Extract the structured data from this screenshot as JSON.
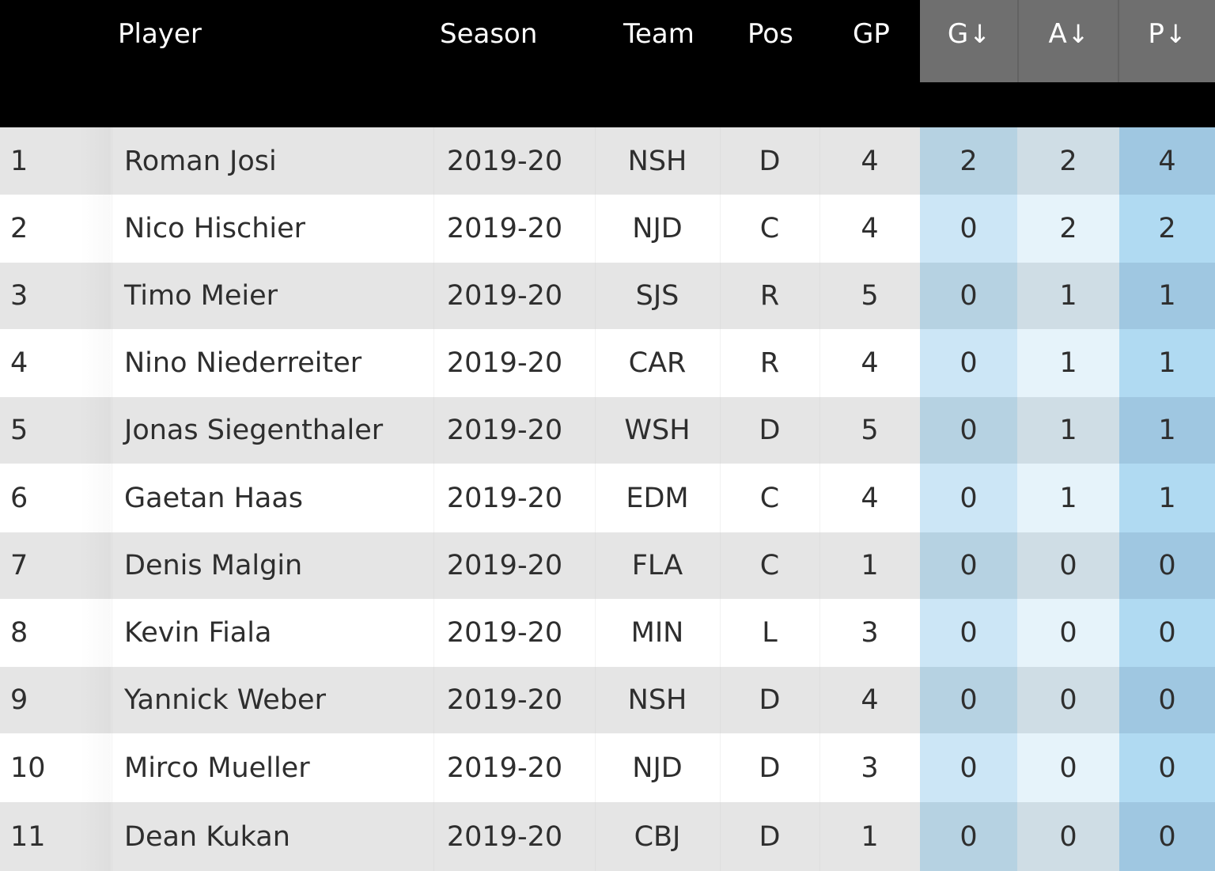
{
  "columns": {
    "player": "Player",
    "season": "Season",
    "team": "Team",
    "pos": "Pos",
    "gp": "GP",
    "g": "G",
    "a": "A",
    "p": "P",
    "sort_arrow": "↓"
  },
  "colors": {
    "header_bg": "#000000",
    "sorted_header_bg": "#6f6f6f",
    "row_odd": "#e5e5e5",
    "row_even": "#ffffff",
    "g_odd": "#b6d2e2",
    "g_even": "#cce6f6",
    "a_odd": "#cfdde5",
    "a_even": "#e6f3fa",
    "p_odd": "#9fc7e1",
    "p_even": "#b0daf2"
  },
  "rows": [
    {
      "rank": "1",
      "player": "Roman Josi",
      "season": "2019-20",
      "team": "NSH",
      "pos": "D",
      "gp": "4",
      "g": "2",
      "a": "2",
      "p": "4"
    },
    {
      "rank": "2",
      "player": "Nico Hischier",
      "season": "2019-20",
      "team": "NJD",
      "pos": "C",
      "gp": "4",
      "g": "0",
      "a": "2",
      "p": "2"
    },
    {
      "rank": "3",
      "player": "Timo Meier",
      "season": "2019-20",
      "team": "SJS",
      "pos": "R",
      "gp": "5",
      "g": "0",
      "a": "1",
      "p": "1"
    },
    {
      "rank": "4",
      "player": "Nino Niederreiter",
      "season": "2019-20",
      "team": "CAR",
      "pos": "R",
      "gp": "4",
      "g": "0",
      "a": "1",
      "p": "1"
    },
    {
      "rank": "5",
      "player": "Jonas Siegenthaler",
      "season": "2019-20",
      "team": "WSH",
      "pos": "D",
      "gp": "5",
      "g": "0",
      "a": "1",
      "p": "1"
    },
    {
      "rank": "6",
      "player": "Gaetan Haas",
      "season": "2019-20",
      "team": "EDM",
      "pos": "C",
      "gp": "4",
      "g": "0",
      "a": "1",
      "p": "1"
    },
    {
      "rank": "7",
      "player": "Denis Malgin",
      "season": "2019-20",
      "team": "FLA",
      "pos": "C",
      "gp": "1",
      "g": "0",
      "a": "0",
      "p": "0"
    },
    {
      "rank": "8",
      "player": "Kevin Fiala",
      "season": "2019-20",
      "team": "MIN",
      "pos": "L",
      "gp": "3",
      "g": "0",
      "a": "0",
      "p": "0"
    },
    {
      "rank": "9",
      "player": "Yannick Weber",
      "season": "2019-20",
      "team": "NSH",
      "pos": "D",
      "gp": "4",
      "g": "0",
      "a": "0",
      "p": "0"
    },
    {
      "rank": "10",
      "player": "Mirco Mueller",
      "season": "2019-20",
      "team": "NJD",
      "pos": "D",
      "gp": "3",
      "g": "0",
      "a": "0",
      "p": "0"
    },
    {
      "rank": "11",
      "player": "Dean Kukan",
      "season": "2019-20",
      "team": "CBJ",
      "pos": "D",
      "gp": "1",
      "g": "0",
      "a": "0",
      "p": "0"
    }
  ]
}
